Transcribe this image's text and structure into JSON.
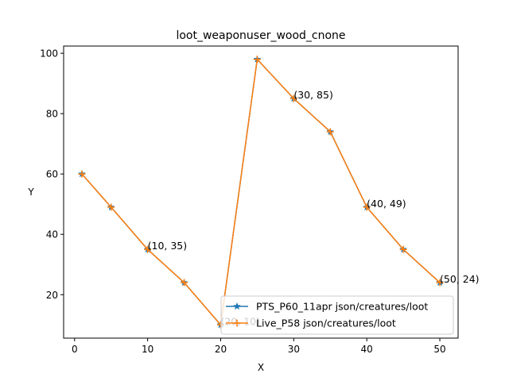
{
  "chart_data": {
    "type": "line",
    "title": "loot_weaponuser_wood_cnone",
    "xlabel": "X",
    "ylabel": "Y",
    "xlim": [
      -1.5,
      52.5
    ],
    "ylim": [
      5.6,
      102.4
    ],
    "x_ticks": [
      0,
      10,
      20,
      30,
      40,
      50
    ],
    "y_ticks": [
      20,
      40,
      60,
      80,
      100
    ],
    "grid": false,
    "legend_position": "lower-right",
    "series": [
      {
        "name": "PTS_P60_11apr json/creatures/loot",
        "color": "#1f77b4",
        "marker": "star",
        "x": [
          1,
          5,
          10,
          15,
          20,
          25,
          30,
          35,
          40,
          45,
          50
        ],
        "y": [
          60,
          49,
          35,
          24,
          10,
          98,
          85,
          74,
          49,
          35,
          24
        ]
      },
      {
        "name": "Live_P58 json/creatures/loot",
        "color": "#ff7f0e",
        "marker": "plus",
        "x": [
          1,
          5,
          10,
          15,
          20,
          25,
          30,
          35,
          40,
          45,
          50
        ],
        "y": [
          60,
          49,
          35,
          24,
          10,
          98,
          85,
          74,
          49,
          35,
          24
        ]
      }
    ],
    "annotations": [
      {
        "x": 10,
        "y": 35,
        "text": "(10, 35)"
      },
      {
        "x": 20,
        "y": 10,
        "text": "(20, 10)"
      },
      {
        "x": 30,
        "y": 85,
        "text": "(30, 85)"
      },
      {
        "x": 40,
        "y": 49,
        "text": "(40, 49)"
      },
      {
        "x": 50,
        "y": 24,
        "text": "(50, 24)"
      }
    ]
  }
}
